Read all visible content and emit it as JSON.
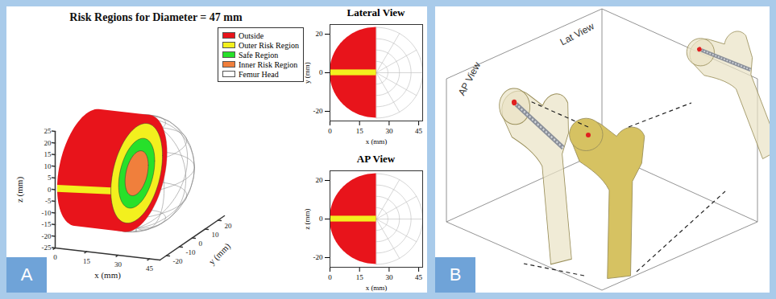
{
  "panel_labels": [
    "A",
    "B"
  ],
  "chart_data": [
    {
      "type": "surface3d",
      "title": "Risk Regions for Diameter = 47 mm",
      "x_label": "x (mm)",
      "y_label": "y (mm)",
      "z_label": "z (mm)",
      "head_diameter": 47,
      "regions": [
        {
          "name": "Outside",
          "color": "#e8141b",
          "radius": 23.5
        },
        {
          "name": "Outer Risk Region",
          "color": "#f3f01e",
          "radius": 20
        },
        {
          "name": "Safe Region",
          "color": "#27e02a",
          "radius": 14
        },
        {
          "name": "Inner Risk Region",
          "color": "#f07f3c",
          "radius": 9
        },
        {
          "name": "Femur Head",
          "color": "#ffffff"
        }
      ],
      "outer_risk_band": [
        -1.5,
        1.5
      ],
      "xlim": [
        0,
        50
      ],
      "xticks": [
        0,
        15,
        30,
        45
      ],
      "ylim": [
        -25,
        25
      ],
      "yticks": [
        -20,
        -10,
        0,
        10,
        20
      ],
      "zlim": [
        -25,
        25
      ],
      "zticks": [
        -25,
        -20,
        -15,
        -10,
        -5,
        0,
        5,
        10,
        15,
        20,
        25
      ],
      "legend": "top-right"
    },
    {
      "type": "area",
      "title": "Lateral View",
      "x_label": "x (mm)",
      "y_label": "y (mm)",
      "head_diameter": 47,
      "color": "#e8141b",
      "band": {
        "color": "#f3f01e",
        "values": [
          -1.5,
          1.5
        ]
      },
      "xlim": [
        0,
        47
      ],
      "xticks": [
        0,
        15,
        30,
        45
      ],
      "ylim": [
        -25,
        25
      ],
      "yticks": [
        -20,
        0,
        20
      ]
    },
    {
      "type": "area",
      "title": "AP View",
      "x_label": "x (mm)",
      "y_label": "z (mm)",
      "head_diameter": 47,
      "color": "#e8141b",
      "band": {
        "color": "#f3f01e",
        "values": [
          -1.5,
          1.5
        ]
      },
      "xlim": [
        0,
        47
      ],
      "xticks": [
        0,
        15,
        30,
        45
      ],
      "ylim": [
        -25,
        25
      ],
      "yticks": [
        -20,
        0,
        20
      ]
    }
  ],
  "panel_b": {
    "labels": [
      "AP View",
      "Lat View"
    ]
  }
}
